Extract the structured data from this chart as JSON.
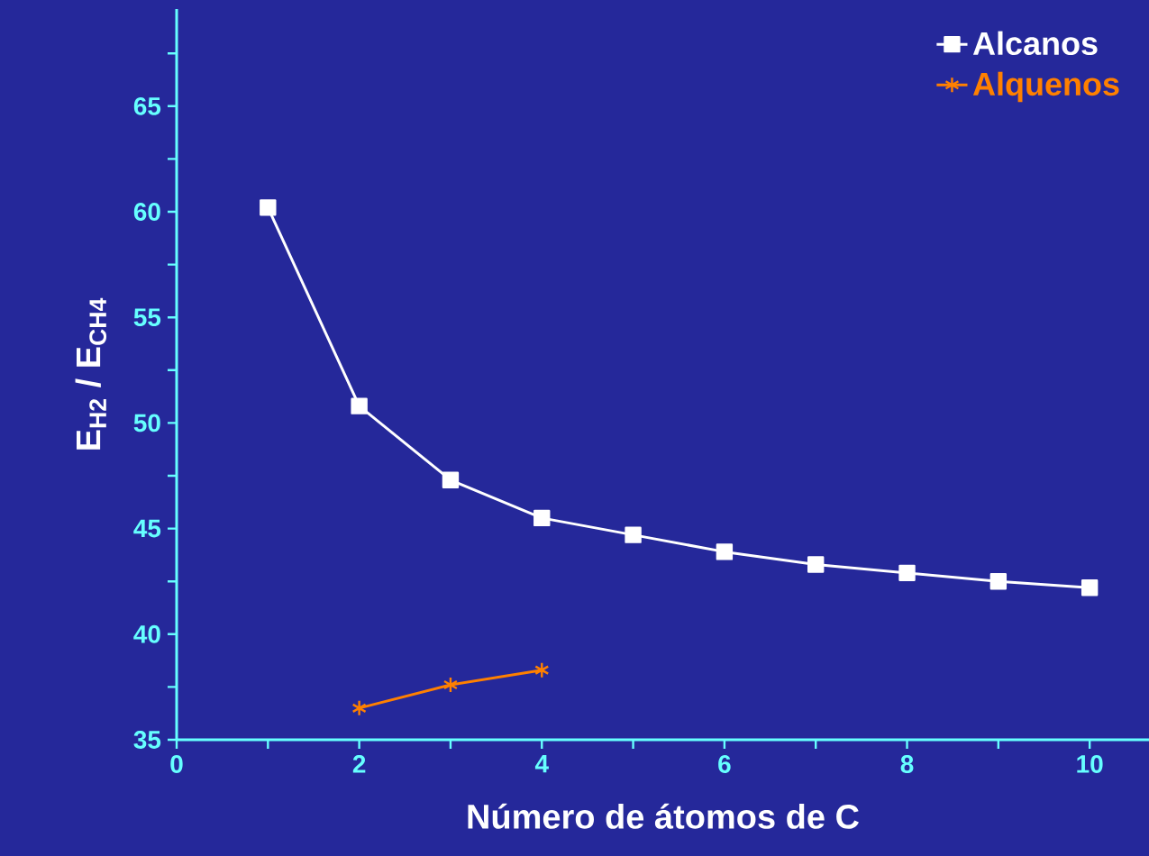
{
  "chart_data": {
    "type": "line",
    "xlabel": "Número de átomos de C",
    "ylabel": "E$_{H2}$ / E$_{CH4}$",
    "x": [
      1,
      2,
      3,
      4,
      5,
      6,
      7,
      8,
      9,
      10
    ],
    "series": [
      {
        "name": "Alcanos",
        "color": "#ffffff",
        "marker": "square",
        "values": [
          60.2,
          50.8,
          47.3,
          45.5,
          44.7,
          43.9,
          43.3,
          42.9,
          42.5,
          42.2
        ]
      },
      {
        "name": "Alquenos",
        "color": "#ff8000",
        "marker": "cross",
        "values": [
          null,
          36.5,
          37.6,
          38.3,
          null,
          null,
          null,
          null,
          null,
          null
        ]
      }
    ],
    "xlim": [
      0,
      10.65
    ],
    "ylim": [
      35,
      69.6
    ],
    "xticks": [
      0,
      {
        "value": 1,
        "label": null
      },
      2,
      {
        "value": 3,
        "label": null
      },
      4,
      {
        "value": 5,
        "label": null
      },
      6,
      {
        "value": 7,
        "label": null
      },
      8,
      {
        "value": 9,
        "label": null
      },
      10
    ],
    "yticks": [
      35,
      {
        "value": 37.5,
        "label": null
      },
      40,
      {
        "value": 42.5,
        "label": null
      },
      45,
      {
        "value": 47.5,
        "label": null
      },
      50,
      {
        "value": 52.5,
        "label": null
      },
      55,
      {
        "value": 57.5,
        "label": null
      },
      60,
      {
        "value": 62.5,
        "label": null
      },
      65,
      {
        "value": 67.5,
        "label": null
      }
    ],
    "legend": "top right",
    "grid": false,
    "line_style": "solid"
  }
}
